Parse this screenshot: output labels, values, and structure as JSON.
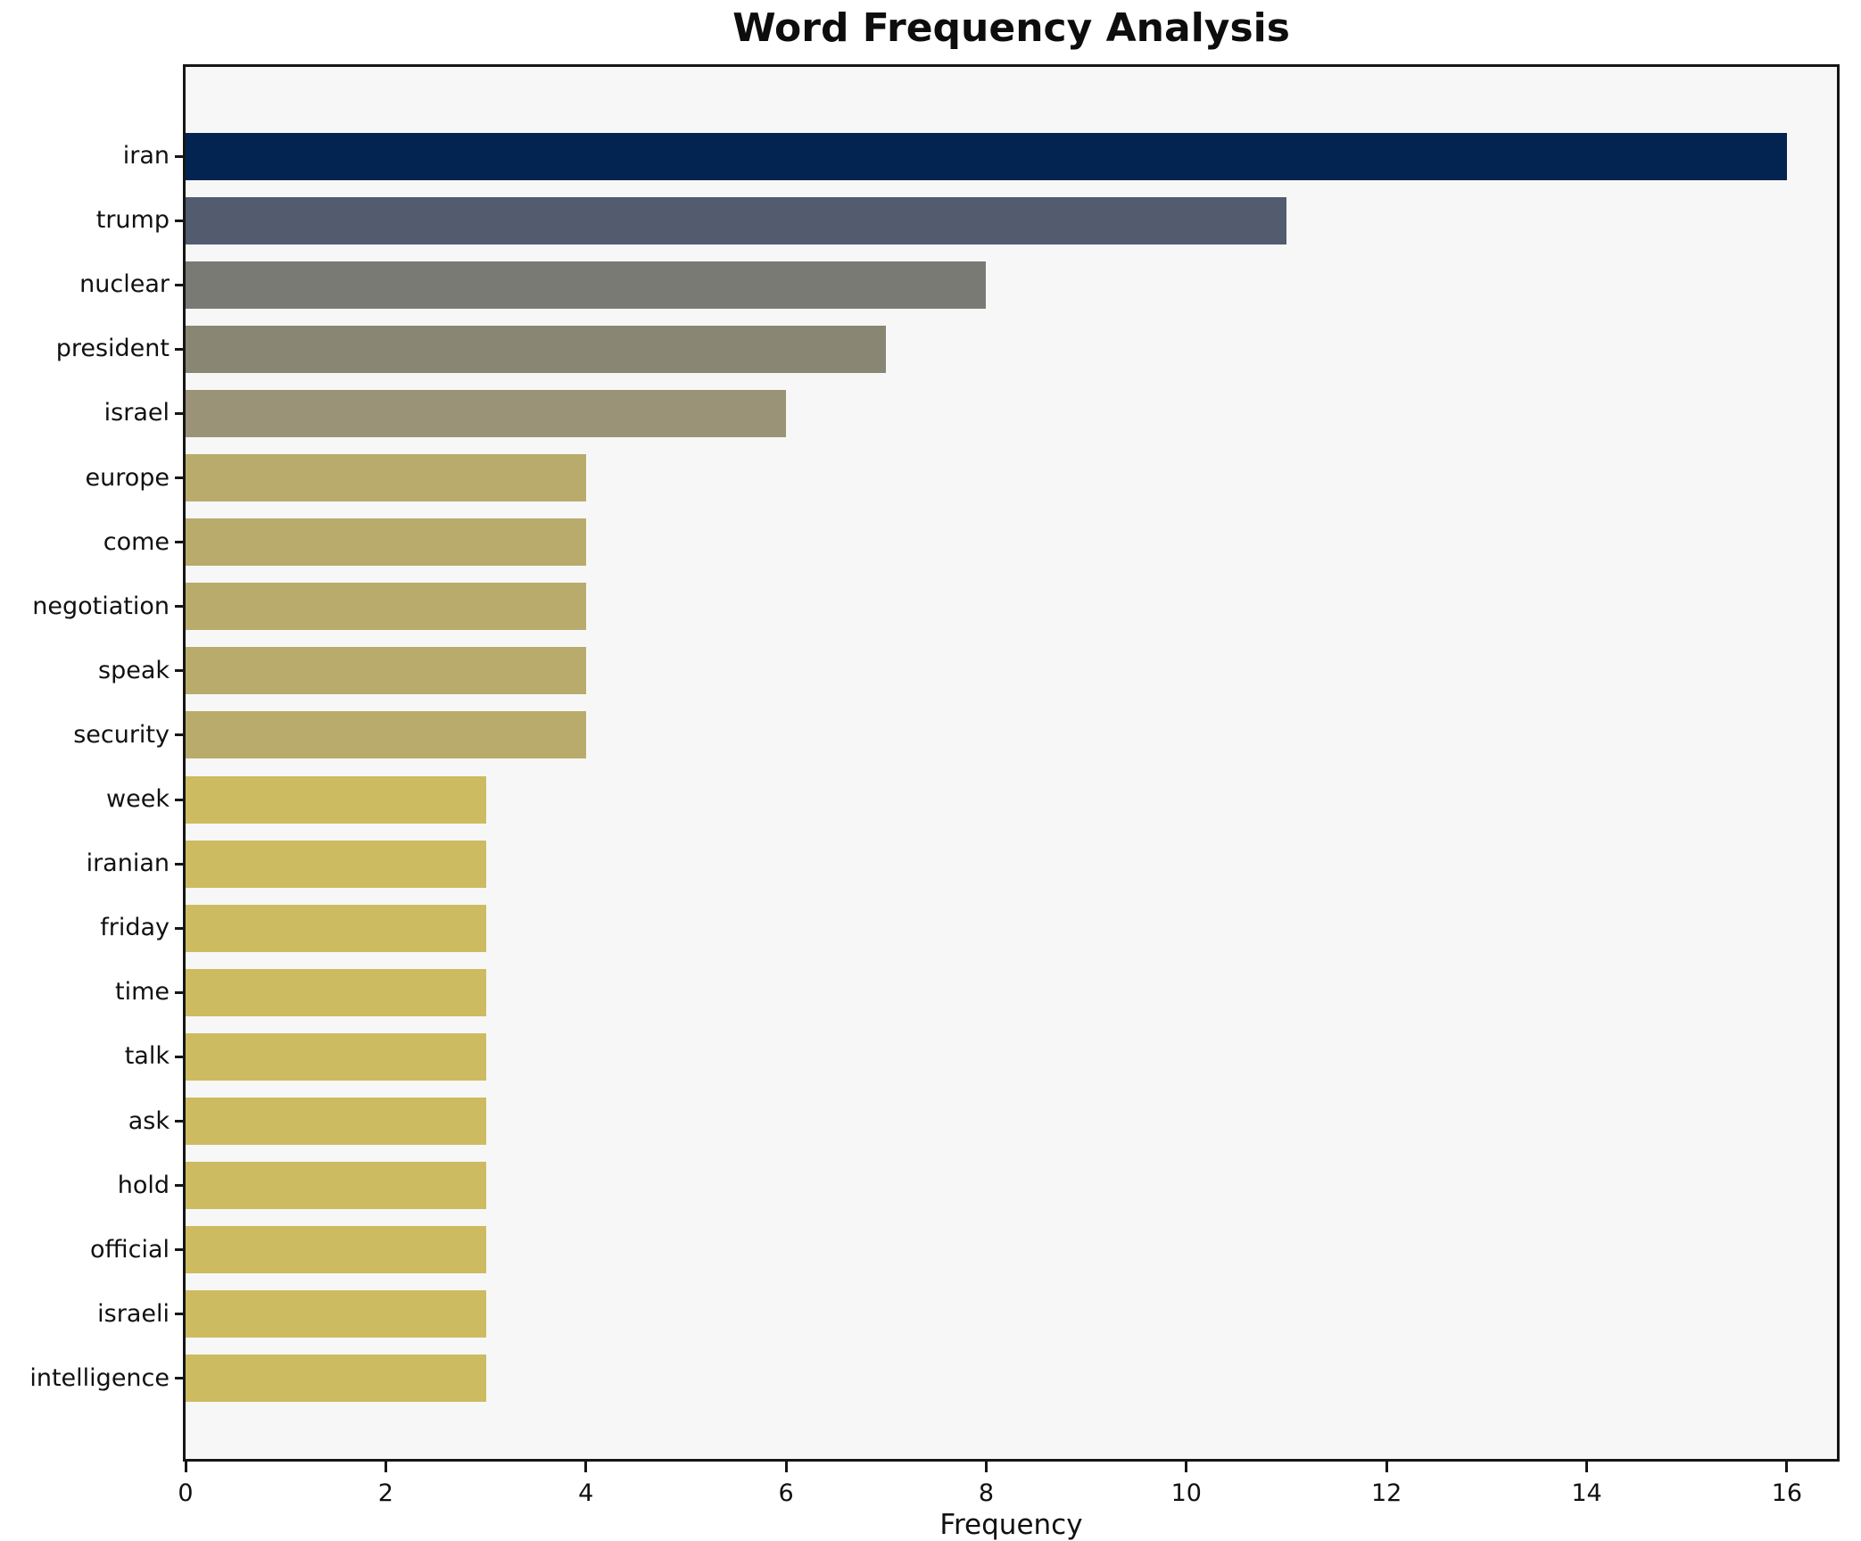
{
  "title": "Word Frequency Analysis",
  "chart_data": {
    "type": "bar",
    "orientation": "horizontal",
    "title": "Word Frequency Analysis",
    "xlabel": "Frequency",
    "ylabel": "",
    "categories": [
      "iran",
      "trump",
      "nuclear",
      "president",
      "israel",
      "europe",
      "come",
      "negotiation",
      "speak",
      "security",
      "week",
      "iranian",
      "friday",
      "time",
      "talk",
      "ask",
      "hold",
      "official",
      "israeli",
      "intelligence"
    ],
    "values": [
      16,
      11,
      8,
      7,
      6,
      4,
      4,
      4,
      4,
      4,
      3,
      3,
      3,
      3,
      3,
      3,
      3,
      3,
      3,
      3
    ],
    "bar_colors": [
      "#032450",
      "#535b6e",
      "#7a7a75",
      "#8a8674",
      "#9b9378",
      "#b9ab6b",
      "#b9ab6b",
      "#b9ab6b",
      "#b9ab6b",
      "#b9ab6b",
      "#ccbb61",
      "#ccbb61",
      "#ccbb61",
      "#ccbb61",
      "#ccbb61",
      "#ccbb61",
      "#ccbb61",
      "#ccbb61",
      "#ccbb61",
      "#ccbb61"
    ],
    "xticks": [
      0,
      2,
      4,
      6,
      8,
      10,
      12,
      14,
      16
    ],
    "xlim": [
      0,
      16.5
    ],
    "grid": false,
    "legend": null,
    "plot_background": "#f7f7f8",
    "figure_background": "#ffffff",
    "spine_color": "#161616"
  }
}
